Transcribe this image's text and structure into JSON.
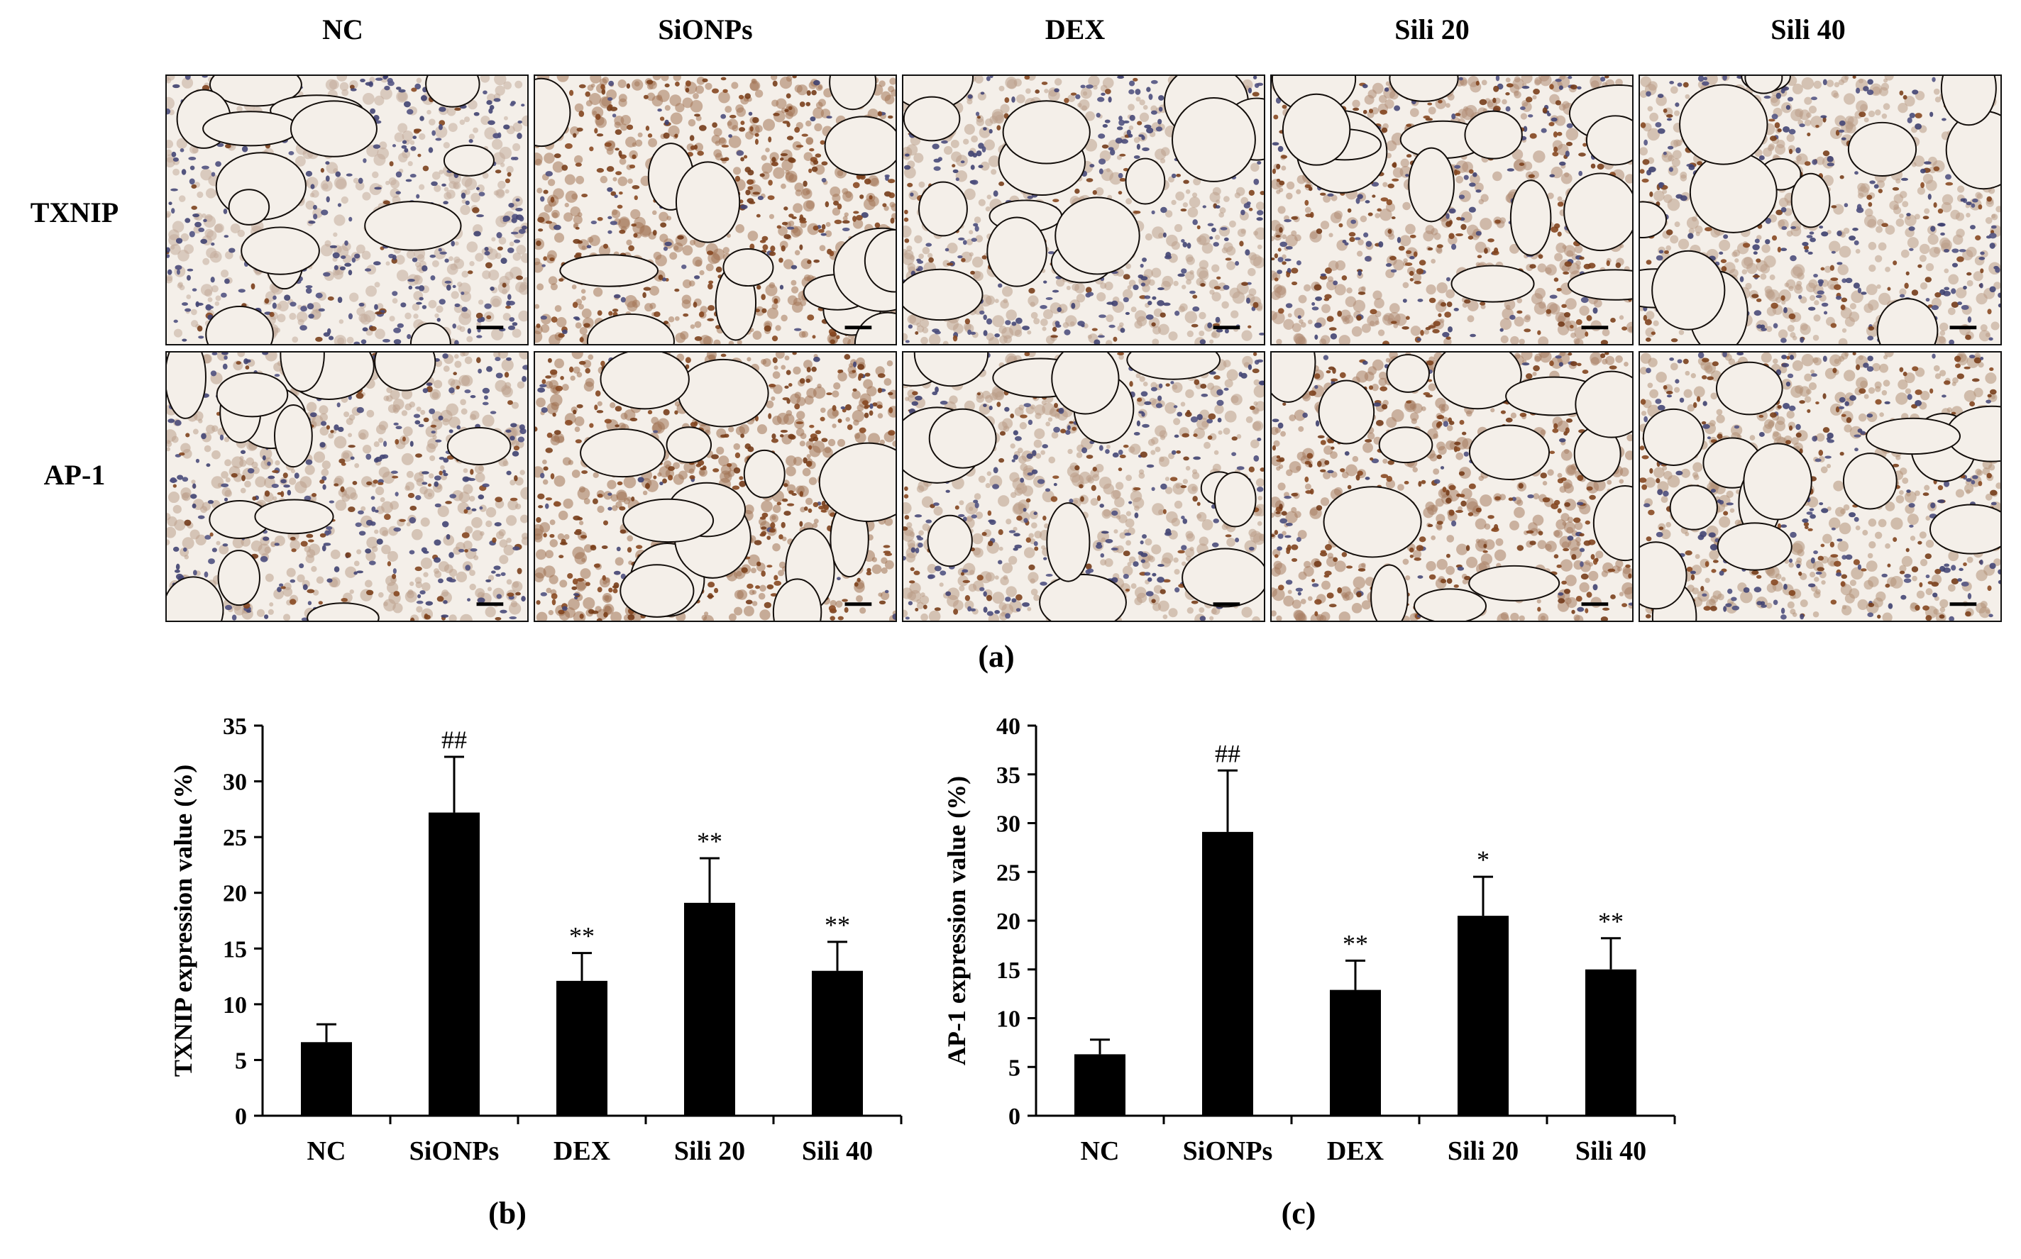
{
  "figure": {
    "columns": [
      "NC",
      "SiONPs",
      "DEX",
      "Sili 20",
      "Sili 40"
    ],
    "rows": [
      "TXNIP",
      "AP-1"
    ],
    "label_a": "(a)",
    "label_b": "(b)",
    "label_c": "(c)",
    "micrograph_colors": {
      "background": "#f4efe9",
      "brown_stain": "#8a4a22",
      "blue_nuclei": "#3d3f6e"
    },
    "stain_intensity": {
      "TXNIP": [
        0.15,
        0.85,
        0.3,
        0.55,
        0.35
      ],
      "AP-1": [
        0.3,
        0.9,
        0.35,
        0.75,
        0.5
      ]
    }
  },
  "chart_data": [
    {
      "type": "bar",
      "categories": [
        "NC",
        "SiONPs",
        "DEX",
        "Sili 20",
        "Sili 40"
      ],
      "values": [
        6.6,
        27.2,
        12.1,
        19.1,
        13.0
      ],
      "errors": [
        1.6,
        5.0,
        2.5,
        4.0,
        2.6
      ],
      "annotations": [
        "",
        "##",
        "**",
        "**",
        "**"
      ],
      "ylabel": "TXNIP expression value (%)",
      "xlabel": "",
      "ylim": [
        0,
        35
      ],
      "yticks": [
        0,
        5,
        10,
        15,
        20,
        25,
        30,
        35
      ],
      "bar_color": "#000000",
      "label": "(b)"
    },
    {
      "type": "bar",
      "categories": [
        "NC",
        "SiONPs",
        "DEX",
        "Sili 20",
        "Sili 40"
      ],
      "values": [
        6.3,
        29.1,
        12.9,
        20.5,
        15.0
      ],
      "errors": [
        1.5,
        6.3,
        3.0,
        4.0,
        3.2
      ],
      "annotations": [
        "",
        "##",
        "**",
        "*",
        "**"
      ],
      "ylabel": "AP-1 expression value (%)",
      "xlabel": "",
      "ylim": [
        0,
        40
      ],
      "yticks": [
        0,
        5,
        10,
        15,
        20,
        25,
        30,
        35,
        40
      ],
      "bar_color": "#000000",
      "label": "(c)"
    }
  ]
}
